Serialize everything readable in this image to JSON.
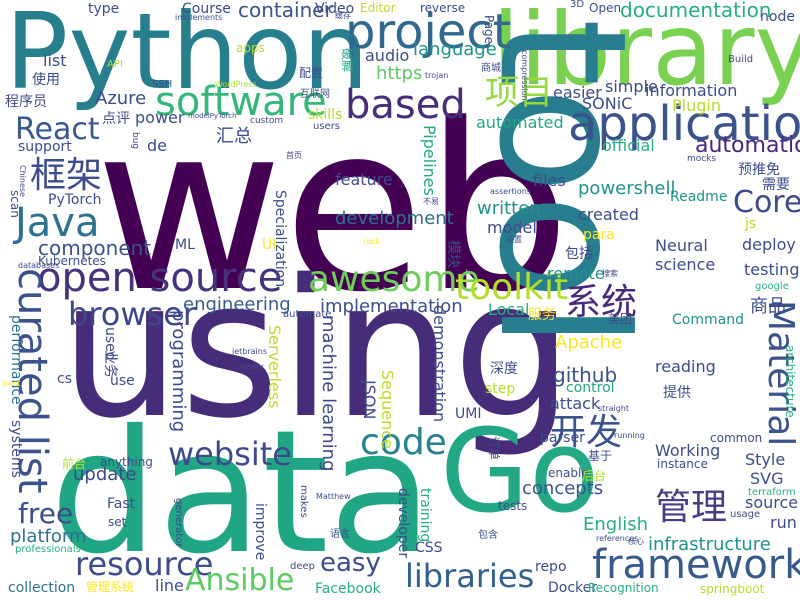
{
  "words": [
    {
      "text": "web",
      "color": "#440154"
    },
    {
      "text": "using",
      "color": "#472c7a"
    },
    {
      "text": "data",
      "color": "#21a685"
    },
    {
      "text": "Python",
      "color": "#277f8e"
    },
    {
      "text": "library",
      "color": "#7ad151"
    },
    {
      "text": "tool",
      "color": "#287d8e"
    },
    {
      "text": "Go",
      "color": "#22a884"
    },
    {
      "text": "application",
      "color": "#3b528b"
    },
    {
      "text": "project",
      "color": "#31688e"
    },
    {
      "text": "framework",
      "color": "#38598c"
    },
    {
      "text": "open source",
      "color": "#46327e"
    },
    {
      "text": "based",
      "color": "#472d7b"
    },
    {
      "text": "software",
      "color": "#35b779"
    },
    {
      "text": "code",
      "color": "#26828e"
    },
    {
      "text": "libraries",
      "color": "#355f8d"
    },
    {
      "text": "resource",
      "color": "#3e4c8a"
    },
    {
      "text": "website",
      "color": "#3e4989"
    },
    {
      "text": "Java",
      "color": "#2c728e"
    },
    {
      "text": "curated list",
      "color": "#3b528b"
    },
    {
      "text": "awesome",
      "color": "#6ece58"
    },
    {
      "text": "toolkit",
      "color": "#b5de2b"
    },
    {
      "text": "browser",
      "color": "#3f4788"
    },
    {
      "text": "Material",
      "color": "#3b528b"
    },
    {
      "text": "React",
      "color": "#38598c"
    },
    {
      "text": "Ansible",
      "color": "#5ec962"
    },
    {
      "text": "free",
      "color": "#3d4e8a"
    },
    {
      "text": "Core",
      "color": "#3e4a89"
    },
    {
      "text": "automation",
      "color": "#472878"
    },
    {
      "text": "documentation",
      "color": "#29af7f"
    },
    {
      "text": "项目",
      "color": "#95d840"
    },
    {
      "text": "系统",
      "color": "#482878"
    },
    {
      "text": "管理",
      "color": "#433e85"
    },
    {
      "text": "开发",
      "color": "#3b528b"
    },
    {
      "text": "框架",
      "color": "#3e4c8a"
    },
    {
      "text": "easy",
      "color": "#3e4c8a"
    },
    {
      "text": "container",
      "color": "#3b528b"
    },
    {
      "text": "component",
      "color": "#3b528b"
    },
    {
      "text": "engineering",
      "color": "#375a8c"
    },
    {
      "text": "implementation",
      "color": "#3d4d8a"
    },
    {
      "text": "development",
      "color": "#2c728e"
    },
    {
      "text": "machine learning",
      "color": "#3e4989"
    },
    {
      "text": "programming",
      "color": "#3e4989"
    },
    {
      "text": "update",
      "color": "#3f4788"
    },
    {
      "text": "platform",
      "color": "#2d718e"
    },
    {
      "text": "infrastructure",
      "color": "#20928c"
    },
    {
      "text": "concepts",
      "color": "#3b528b"
    },
    {
      "text": "github",
      "color": "#3b528b"
    },
    {
      "text": "language",
      "color": "#20928c"
    },
    {
      "text": "Apache",
      "color": "#fde725"
    },
    {
      "text": "powershell",
      "color": "#20928c"
    },
    {
      "text": "written",
      "color": "#20928c"
    },
    {
      "text": "English",
      "color": "#29af7f"
    },
    {
      "text": "feature",
      "color": "#3e4c8a"
    },
    {
      "text": "files",
      "color": "#3e4c8a"
    },
    {
      "text": "created",
      "color": "#3e4c8a"
    },
    {
      "text": "model",
      "color": "#3e4c8a"
    },
    {
      "text": "science",
      "color": "#3e4c8a"
    },
    {
      "text": "deploy",
      "color": "#3e4c8a"
    },
    {
      "text": "testing",
      "color": "#3e4c8a"
    },
    {
      "text": "source",
      "color": "#3e4c8a"
    },
    {
      "text": "run",
      "color": "#3e4c8a"
    },
    {
      "text": "Style",
      "color": "#3e4c8a"
    },
    {
      "text": "SVG",
      "color": "#3e4c8a"
    },
    {
      "text": "Working",
      "color": "#3e4c8a"
    },
    {
      "text": "reading",
      "color": "#3e4c8a"
    },
    {
      "text": "Neural",
      "color": "#3e4c8a"
    },
    {
      "text": "attack",
      "color": "#3e4c8a"
    },
    {
      "text": "Local",
      "color": "#29af7f"
    },
    {
      "text": "remote",
      "color": "#20928c"
    },
    {
      "text": "demonstration",
      "color": "#3e4c8a"
    },
    {
      "text": "Serverless",
      "color": "#b5de2b"
    },
    {
      "text": "Sequence",
      "color": "#b5de2b"
    },
    {
      "text": "JSON",
      "color": "#3e4c8a"
    },
    {
      "text": "automated",
      "color": "#22a884"
    },
    {
      "text": "Pipelines",
      "color": "#22a884"
    },
    {
      "text": "simple",
      "color": "#3e4c8a"
    },
    {
      "text": "information",
      "color": "#3e4c8a"
    },
    {
      "text": "official",
      "color": "#29af7f"
    },
    {
      "text": "easier",
      "color": "#3e4c8a"
    },
    {
      "text": "SONiC",
      "color": "#3e4c8a"
    },
    {
      "text": "Plugin",
      "color": "#b5de2b"
    },
    {
      "text": "https",
      "color": "#5ec962"
    },
    {
      "text": "audio",
      "color": "#3e4c8a"
    },
    {
      "text": "Azure",
      "color": "#3e4c8a"
    },
    {
      "text": "power",
      "color": "#3e4c8a"
    },
    {
      "text": "skills",
      "color": "#b5de2b"
    },
    {
      "text": "support",
      "color": "#3e4c8a"
    },
    {
      "text": "PyTorch",
      "color": "#3e4c8a"
    },
    {
      "text": "Specialization",
      "color": "#3e4c8a"
    },
    {
      "text": "Kubernetes",
      "color": "#3e4c8a"
    },
    {
      "text": "performance",
      "color": "#2c728e"
    },
    {
      "text": "systems",
      "color": "#3e4c8a"
    },
    {
      "text": "collection",
      "color": "#2c728e"
    },
    {
      "text": "Fast",
      "color": "#3e4c8a"
    },
    {
      "text": "used",
      "color": "#3e4c8a"
    },
    {
      "text": "use",
      "color": "#3e4c8a"
    },
    {
      "text": "Docker",
      "color": "#3e4c8a"
    },
    {
      "text": "repo",
      "color": "#3e4c8a"
    },
    {
      "text": "Facebook",
      "color": "#29af7f"
    },
    {
      "text": "step",
      "color": "#b5de2b"
    },
    {
      "text": "control",
      "color": "#22a884"
    },
    {
      "text": "parser",
      "color": "#3e4c8a"
    },
    {
      "text": "UMI",
      "color": "#3e4c8a"
    },
    {
      "text": "tests",
      "color": "#3e4c8a"
    },
    {
      "text": "improve",
      "color": "#3e4c8a"
    },
    {
      "text": "developer",
      "color": "#3e4c8a"
    },
    {
      "text": "CSS",
      "color": "#3e4c8a"
    },
    {
      "text": "training",
      "color": "#29af7f"
    },
    {
      "text": "anything",
      "color": "#3e4c8a"
    },
    {
      "text": "ML",
      "color": "#3e4c8a"
    },
    {
      "text": "UI",
      "color": "#fde725"
    },
    {
      "text": "js",
      "color": "#b5de2b"
    },
    {
      "text": "para",
      "color": "#fde725"
    },
    {
      "text": "Readme",
      "color": "#20928c"
    },
    {
      "text": "Command",
      "color": "#20928c"
    },
    {
      "text": "architecture",
      "color": "#29af7f"
    },
    {
      "text": "common",
      "color": "#3e4c8a"
    },
    {
      "text": "instance",
      "color": "#3e4c8a"
    },
    {
      "text": "enable",
      "color": "#3e4c8a"
    },
    {
      "text": "usage",
      "color": "#3e4c8a"
    },
    {
      "text": "terraform",
      "color": "#29af7f"
    },
    {
      "text": "Recognition",
      "color": "#29af7f"
    },
    {
      "text": "springboot",
      "color": "#b5de2b"
    },
    {
      "text": "Course",
      "color": "#3e4c8a"
    },
    {
      "text": "type",
      "color": "#3e4c8a"
    },
    {
      "text": "Video",
      "color": "#3e4c8a"
    },
    {
      "text": "Editor",
      "color": "#b5de2b"
    },
    {
      "text": "reverse",
      "color": "#3e4c8a"
    },
    {
      "text": "Page",
      "color": "#3e4c8a"
    },
    {
      "text": "Open",
      "color": "#3e4c8a"
    },
    {
      "text": "node",
      "color": "#3e4c8a"
    },
    {
      "text": "list",
      "color": "#3e4c8a"
    },
    {
      "text": "de",
      "color": "#3e4c8a"
    },
    {
      "text": "cs",
      "color": "#3e4c8a"
    },
    {
      "text": "set",
      "color": "#3e4c8a"
    },
    {
      "text": "line",
      "color": "#3e4c8a"
    },
    {
      "text": "scan",
      "color": "#3e4c8a"
    },
    {
      "text": "apps",
      "color": "#b5de2b"
    },
    {
      "text": "API",
      "color": "#b5de2b"
    },
    {
      "text": "SSH",
      "color": "#3e4c8a"
    },
    {
      "text": "custom",
      "color": "#3e4c8a"
    },
    {
      "text": "users",
      "color": "#3e4c8a"
    },
    {
      "text": "bug",
      "color": "#3e4c8a"
    },
    {
      "text": "implements",
      "color": "#3e4c8a"
    },
    {
      "text": "WordPress",
      "color": "#b5de2b"
    },
    {
      "text": "modelPyTorch",
      "color": "#3e4c8a"
    },
    {
      "text": "trojan",
      "color": "#3e4c8a"
    },
    {
      "text": "compression",
      "color": "#3e4c8a"
    },
    {
      "text": "Build",
      "color": "#3e4c8a"
    },
    {
      "text": "mocks",
      "color": "#3e4c8a"
    },
    {
      "text": "google",
      "color": "#29af7f"
    },
    {
      "text": "jetbrains",
      "color": "#3e4c8a"
    },
    {
      "text": "newly",
      "color": "#3e4c8a"
    },
    {
      "text": "automate",
      "color": "#3e4c8a"
    },
    {
      "text": "generator",
      "color": "#3e4c8a"
    },
    {
      "text": "professionals",
      "color": "#29af7f"
    },
    {
      "text": "Matthew",
      "color": "#3e4c8a"
    },
    {
      "text": "makes",
      "color": "#3e4c8a"
    },
    {
      "text": "deep",
      "color": "#3e4c8a"
    },
    {
      "text": "assertions",
      "color": "#3e4c8a"
    },
    {
      "text": "running",
      "color": "#3e4c8a"
    },
    {
      "text": "references",
      "color": "#3e4c8a"
    },
    {
      "text": "straight",
      "color": "#3e4c8a"
    },
    {
      "text": "best",
      "color": "#fde725"
    },
    {
      "text": "databases",
      "color": "#3e4c8a"
    },
    {
      "text": "Chinese",
      "color": "#3e4c8a"
    },
    {
      "text": "rock",
      "color": "#fde725"
    },
    {
      "text": "3D",
      "color": "#3e4c8a"
    },
    {
      "text": "使用",
      "color": "#3e4c8a"
    },
    {
      "text": "程序员",
      "color": "#3e4c8a"
    },
    {
      "text": "点评",
      "color": "#3e4c8a"
    },
    {
      "text": "汇总",
      "color": "#3e4c8a"
    },
    {
      "text": "配置",
      "color": "#3e4c8a"
    },
    {
      "text": "互联网",
      "color": "#3e4c8a"
    },
    {
      "text": "破解",
      "color": "#22a884"
    },
    {
      "text": "缓存",
      "color": "#3e4c8a"
    },
    {
      "text": "商城",
      "color": "#3e4c8a"
    },
    {
      "text": "预推免",
      "color": "#3e4c8a"
    },
    {
      "text": "需要",
      "color": "#3e4c8a"
    },
    {
      "text": "包括",
      "color": "#3e4c8a"
    },
    {
      "text": "商品",
      "color": "#3e4c8a"
    },
    {
      "text": "美团",
      "color": "#3e4c8a"
    },
    {
      "text": "服务",
      "color": "#fde725"
    },
    {
      "text": "深度",
      "color": "#3e4c8a"
    },
    {
      "text": "提供",
      "color": "#3e4c8a"
    },
    {
      "text": "业务",
      "color": "#3e4c8a"
    },
    {
      "text": "前台",
      "color": "#b5de2b"
    },
    {
      "text": "后台",
      "color": "#b5de2b"
    },
    {
      "text": "基于",
      "color": "#3e4c8a"
    },
    {
      "text": "订单",
      "color": "#3e4c8a"
    },
    {
      "text": "模块",
      "color": "#3e4c8a"
    },
    {
      "text": "包含",
      "color": "#3e4c8a"
    },
    {
      "text": "管理系统",
      "color": "#fde725"
    },
    {
      "text": "搜索",
      "color": "#3e4c8a"
    },
    {
      "text": "首页",
      "color": "#3e4c8a"
    },
    {
      "text": "不易",
      "color": "#3e4c8a"
    },
    {
      "text": "设置",
      "color": "#3e4c8a"
    },
    {
      "text": "语言",
      "color": "#3e4c8a"
    },
    {
      "text": "核心",
      "color": "#3e4c8a"
    }
  ]
}
